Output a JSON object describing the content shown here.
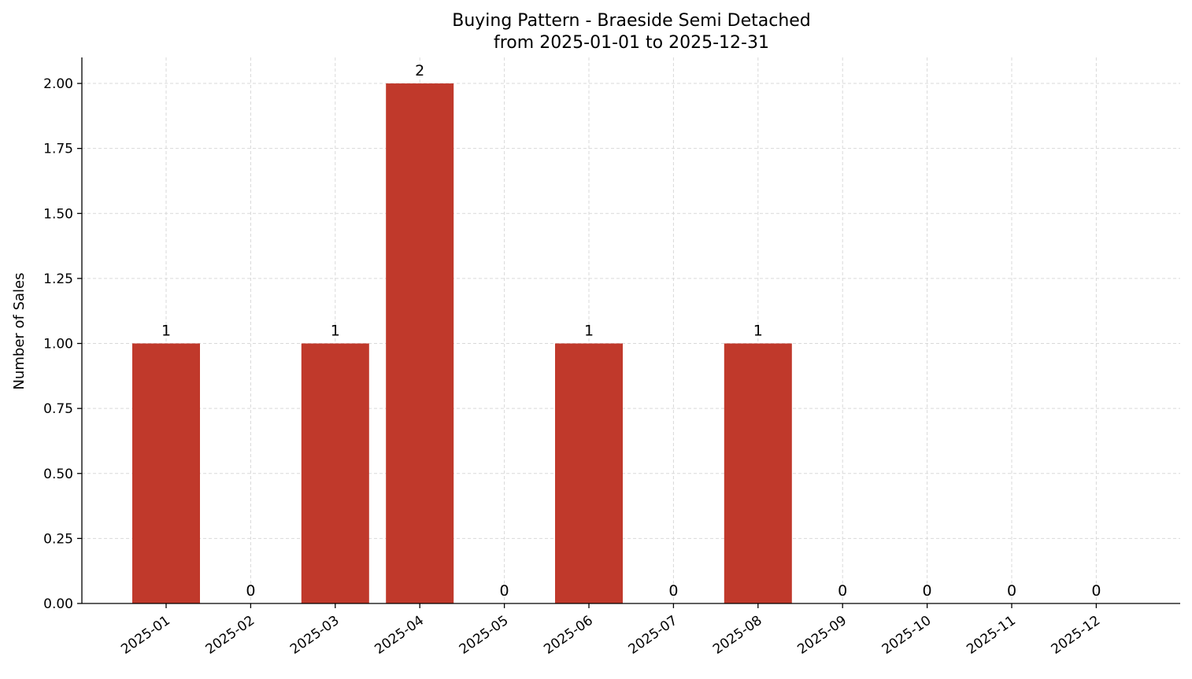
{
  "chart_data": {
    "type": "bar",
    "title": "Buying Pattern - Braeside Semi Detached",
    "subtitle": "from 2025-01-01 to 2025-12-31",
    "xlabel": "",
    "ylabel": "Number of Sales",
    "categories": [
      "2025-01",
      "2025-02",
      "2025-03",
      "2025-04",
      "2025-05",
      "2025-06",
      "2025-07",
      "2025-08",
      "2025-09",
      "2025-10",
      "2025-11",
      "2025-12"
    ],
    "values": [
      1,
      0,
      1,
      2,
      0,
      1,
      0,
      1,
      0,
      0,
      0,
      0
    ],
    "value_labels": [
      "1",
      "0",
      "1",
      "2",
      "0",
      "1",
      "0",
      "1",
      "0",
      "0",
      "0",
      "0"
    ],
    "ylim": [
      0,
      2.1
    ],
    "yticks": [
      0,
      0.25,
      0.5,
      0.75,
      1.0,
      1.25,
      1.5,
      1.75,
      2.0
    ],
    "ytick_labels": [
      "0.00",
      "0.25",
      "0.50",
      "0.75",
      "1.00",
      "1.25",
      "1.50",
      "1.75",
      "2.00"
    ],
    "grid": true,
    "bar_color": "#c0392b"
  }
}
